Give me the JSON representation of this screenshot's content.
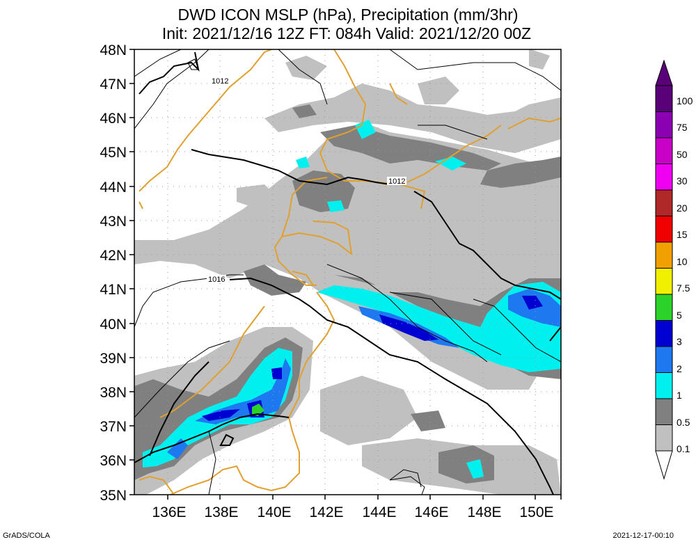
{
  "header": {
    "title_line1": "DWD ICON MSLP (hPa), Precipitation (mm/3hr)",
    "title_line2": "Init: 2021/12/16 12Z  FT: 084h  Valid: 2021/12/20 00Z"
  },
  "map": {
    "lat_labels": [
      "48N",
      "47N",
      "46N",
      "45N",
      "44N",
      "43N",
      "42N",
      "41N",
      "40N",
      "39N",
      "38N",
      "37N",
      "36N",
      "35N"
    ],
    "lon_labels": [
      "136E",
      "138E",
      "140E",
      "142E",
      "144E",
      "146E",
      "148E",
      "150E"
    ],
    "isobar_labels": [
      "1012",
      "1012",
      "1016"
    ]
  },
  "legend": {
    "levels": [
      "0.1",
      "0.5",
      "1",
      "2",
      "3",
      "5",
      "7.5",
      "10",
      "15",
      "20",
      "30",
      "50",
      "75",
      "100"
    ],
    "colors": [
      "#c0c0c0",
      "#808080",
      "#00f0f0",
      "#1e78f0",
      "#0000d2",
      "#2ad22a",
      "#f0f000",
      "#f0a000",
      "#f00000",
      "#b02828",
      "#f000f0",
      "#c800c8",
      "#8c00b4",
      "#5a0078"
    ]
  },
  "footer": {
    "left": "GrADS/COLA",
    "right": "2021-12-17-00:10"
  }
}
